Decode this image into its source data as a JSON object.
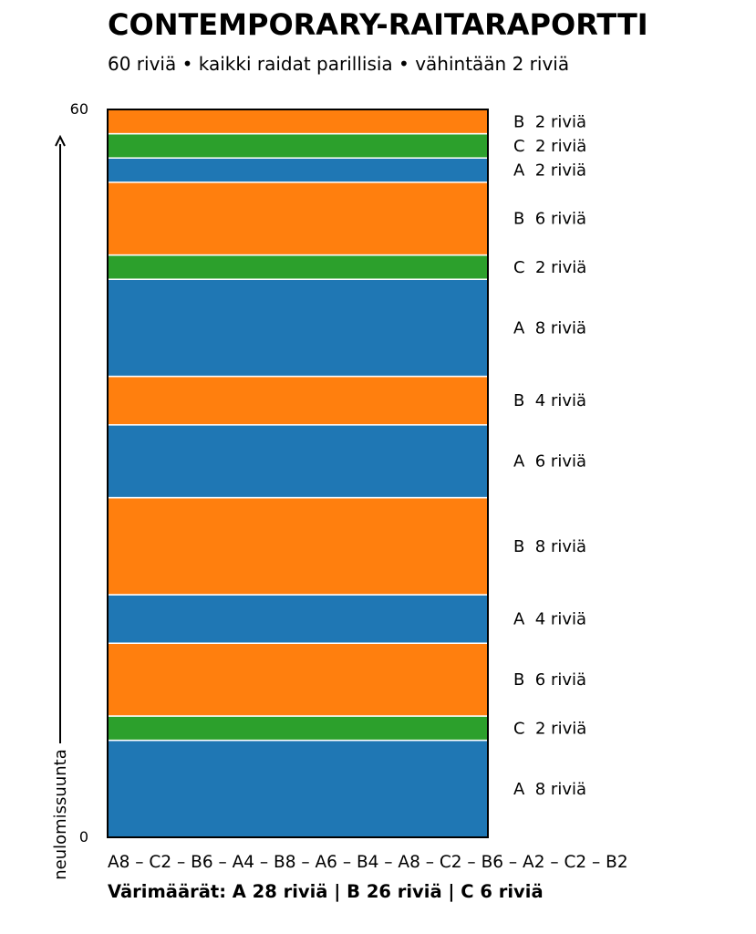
{
  "title": "CONTEMPORARY-RAITARAPORTTI",
  "subtitle": "60 riviä • kaikki raidat parillisia • vähintään 2 riviä",
  "sequence_text": "A8 – C2 – B6 – A4 – B8 – A6 – B4 – A8 – C2 – B6 – A2 – C2 – B2",
  "totals_text": "Värimäärät: A 28 riviä  |  B 26 riviä  |  C 6 riviä",
  "colors": {
    "A": "#1f77b4",
    "B": "#ff7f0e",
    "C": "#2ca02c"
  },
  "chart_data": {
    "type": "bar",
    "orientation": "stacked-vertical",
    "ylabel": "neulomissuunta",
    "ylim": [
      0,
      60
    ],
    "yticks": [
      "0",
      "60"
    ],
    "stripes": [
      {
        "color": "A",
        "rows": 8,
        "label": "A  8 riviä"
      },
      {
        "color": "C",
        "rows": 2,
        "label": "C  2 riviä"
      },
      {
        "color": "B",
        "rows": 6,
        "label": "B  6 riviä"
      },
      {
        "color": "A",
        "rows": 4,
        "label": "A  4 riviä"
      },
      {
        "color": "B",
        "rows": 8,
        "label": "B  8 riviä"
      },
      {
        "color": "A",
        "rows": 6,
        "label": "A  6 riviä"
      },
      {
        "color": "B",
        "rows": 4,
        "label": "B  4 riviä"
      },
      {
        "color": "A",
        "rows": 8,
        "label": "A  8 riviä"
      },
      {
        "color": "C",
        "rows": 2,
        "label": "C  2 riviä"
      },
      {
        "color": "B",
        "rows": 6,
        "label": "B  6 riviä"
      },
      {
        "color": "A",
        "rows": 2,
        "label": "A  2 riviä"
      },
      {
        "color": "C",
        "rows": 2,
        "label": "C  2 riviä"
      },
      {
        "color": "B",
        "rows": 2,
        "label": "B  2 riviä"
      }
    ]
  }
}
